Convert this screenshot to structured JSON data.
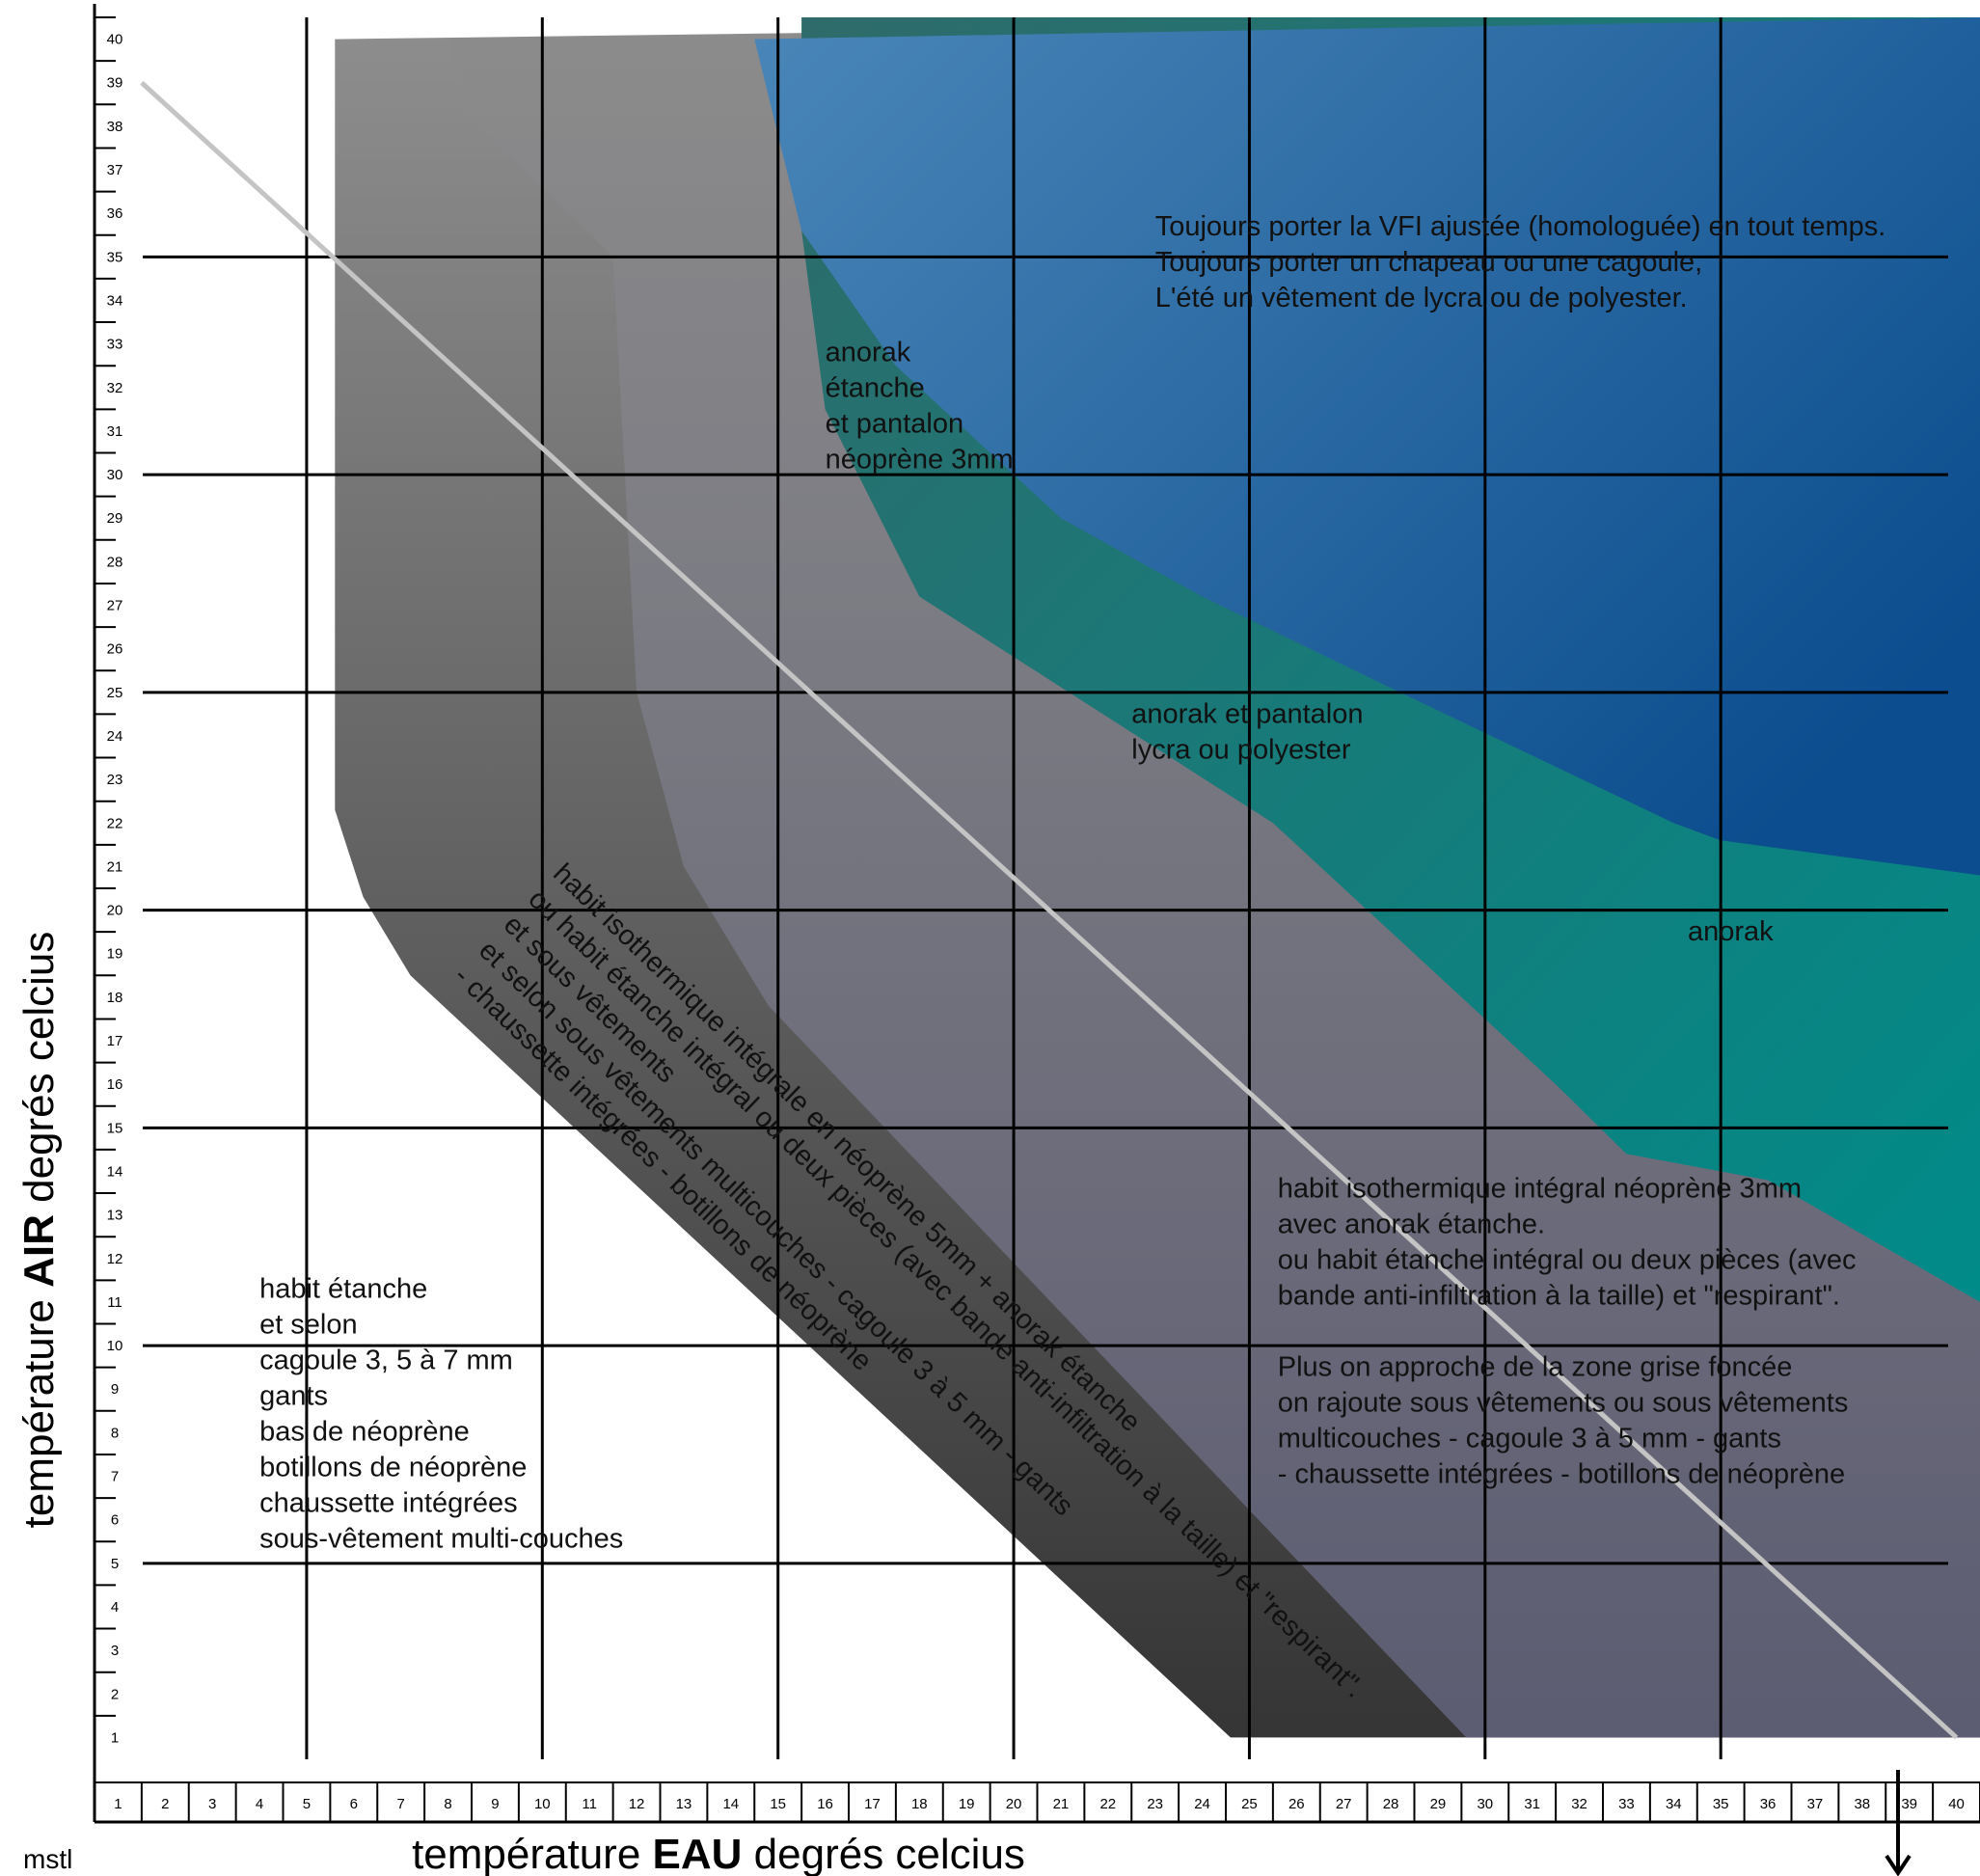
{
  "chart_data": {
    "type": "area",
    "xlabel": {
      "prefix": "température ",
      "bold": "EAU",
      "suffix": " degrés celcius"
    },
    "ylabel": {
      "prefix": "température ",
      "bold": "AIR",
      "suffix": " degrés celcius"
    },
    "corner_label": "mstl",
    "x_ticks": [
      1,
      2,
      3,
      4,
      5,
      6,
      7,
      8,
      9,
      10,
      11,
      12,
      13,
      14,
      15,
      16,
      17,
      18,
      19,
      20,
      21,
      22,
      23,
      24,
      25,
      26,
      27,
      28,
      29,
      30,
      31,
      32,
      33,
      34,
      35,
      36,
      37,
      38,
      39,
      40
    ],
    "y_ticks": [
      1,
      2,
      3,
      4,
      5,
      6,
      7,
      8,
      9,
      10,
      11,
      12,
      13,
      14,
      15,
      16,
      17,
      18,
      19,
      20,
      21,
      22,
      23,
      24,
      25,
      26,
      27,
      28,
      29,
      30,
      31,
      32,
      33,
      34,
      35,
      36,
      37,
      38,
      39,
      40
    ],
    "xlim": [
      0.5,
      40.5
    ],
    "ylim": [
      0.5,
      40.5
    ],
    "grid": {
      "x": [
        5,
        10,
        15,
        20,
        25,
        30,
        35
      ],
      "y": [
        5,
        10,
        15,
        20,
        25,
        30,
        35
      ]
    },
    "zones": [
      {
        "id": "dark-gray",
        "color_top": "#8e8e8e",
        "color_bottom": "#353535",
        "boundary": [
          [
            5.6,
            40
          ],
          [
            5.6,
            22.3
          ],
          [
            6.2,
            20.3
          ],
          [
            7.2,
            18.5
          ],
          [
            24.6,
            1
          ]
        ]
      },
      {
        "id": "mid-gray",
        "color_top": "#8c8c8c",
        "color_bottom": "#5c5c72",
        "boundary": [
          [
            8,
            40
          ],
          [
            8.4,
            38.3
          ],
          [
            11.5,
            35
          ],
          [
            12,
            25
          ],
          [
            13,
            21
          ],
          [
            14.8,
            17.8
          ],
          [
            29.6,
            1
          ]
        ]
      },
      {
        "id": "teal",
        "color_top": "#2e6b6a",
        "color_bottom": "#008b89",
        "boundary": [
          [
            15.5,
            35.6
          ],
          [
            16,
            31.5
          ],
          [
            18,
            27.2
          ],
          [
            25.5,
            22
          ],
          [
            31.5,
            16
          ],
          [
            33,
            14.4
          ],
          [
            36,
            13.8
          ],
          [
            40.5,
            11
          ]
        ]
      },
      {
        "id": "blue",
        "color_top": "#4a86b8",
        "color_bottom": "#0b4d8e",
        "boundary": [
          [
            14.5,
            40
          ],
          [
            15.5,
            35.6
          ],
          [
            17.5,
            32.5
          ],
          [
            21,
            29
          ],
          [
            24,
            27.2
          ],
          [
            28,
            25.1
          ],
          [
            34,
            22
          ],
          [
            35,
            21.6
          ],
          [
            40.5,
            20.8
          ]
        ]
      }
    ],
    "reference_line": {
      "from": [
        1.5,
        39
      ],
      "to": [
        40,
        1
      ]
    },
    "annotations": [
      {
        "id": "vfi",
        "lines": [
          "Toujours porter la VFI ajustée (homologuée) en tout temps.",
          "Toujours porter un chapeau ou une cagoule,",
          "L'été un vêtement de  lycra ou de polyester."
        ],
        "at": [
          23,
          35.5
        ]
      },
      {
        "id": "anorak-etanche",
        "lines": [
          "anorak",
          "étanche",
          "et pantalon",
          "néoprène 3mm"
        ],
        "at": [
          16,
          32.6
        ]
      },
      {
        "id": "anorak-lycra",
        "lines": [
          "anorak et pantalon",
          "lycra ou polyester"
        ],
        "at": [
          22.5,
          24.3
        ]
      },
      {
        "id": "anorak",
        "lines": [
          "anorak"
        ],
        "at": [
          34.3,
          19.3
        ]
      },
      {
        "id": "isotherme-3mm",
        "lines": [
          "habit isothermique intégral néoprène 3mm",
          "avec anorak étanche.",
          "ou habit étanche intégral ou deux pièces (avec",
          "bande anti-infiltration à la taille) et \"respirant\".",
          "",
          "Plus on approche de la zone grise foncée",
          "on rajoute sous vêtements ou sous vêtements",
          "multicouches  - cagoule 3 à 5 mm  - gants",
          "- chaussette intégrées  - botillons de néoprène"
        ],
        "at": [
          25.6,
          13.4
        ]
      },
      {
        "id": "habit-etanche",
        "lines": [
          "habit étanche",
          "et selon",
          "cagoule 3, 5 à 7 mm",
          "gants",
          "bas de néoprène",
          "botillons de néoprène",
          "chaussette intégrées",
          "sous-vêtement multi-couches"
        ],
        "at": [
          4,
          11.1
        ]
      },
      {
        "id": "diagonal",
        "lines": [
          "habit isothermique intégrale en néoprène 5mm + anorak étanche",
          "ou habit étanche intégral ou deux pièces (avec bande anti-infiltration à la taille) et \"respirant\".",
          "et sous vêtements",
          "et selon sous vêtements multicouches  - cagoule 3 à 5 mm  - gants",
          "- chaussette intégrées  - botillons de néoprène"
        ],
        "at": [
          10.2,
          20.8
        ],
        "rotation_deg": 44
      }
    ]
  }
}
